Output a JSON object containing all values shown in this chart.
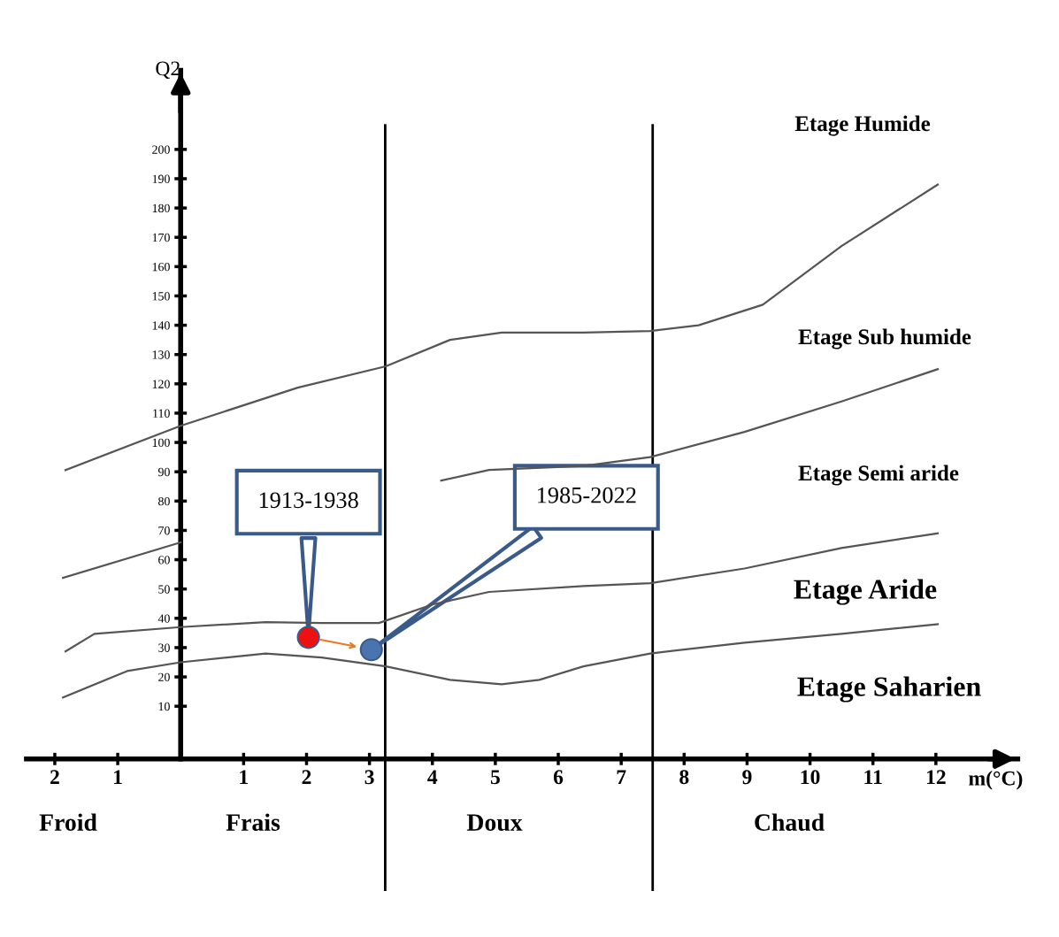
{
  "chart_data": {
    "type": "line",
    "xlabel": "m(°C)",
    "ylabel": "Q2",
    "xlim": [
      -2.45,
      13.3
    ],
    "ylim": [
      -8,
      227
    ],
    "xticks": [
      {
        "value": -2,
        "label": "2"
      },
      {
        "value": -1,
        "label": "1"
      },
      1,
      2,
      3,
      4,
      5,
      6,
      7,
      8,
      9,
      10,
      11,
      12
    ],
    "yticks": [
      10,
      20,
      30,
      40,
      50,
      60,
      70,
      80,
      90,
      100,
      110,
      120,
      130,
      140,
      150,
      160,
      170,
      180,
      190,
      200
    ],
    "grid": false,
    "legend": false,
    "line_style": "solid",
    "series": [
      {
        "color": "#555555",
        "x": [
          -1.83,
          0,
          1.86,
          3.26,
          4.28,
          5.1,
          6.4,
          7.46,
          8.23,
          9.25,
          10.5,
          12.03
        ],
        "values": [
          90.6,
          105.7,
          118.7,
          126,
          135,
          137.5,
          137.5,
          138,
          140,
          147,
          167,
          188
        ]
      },
      {
        "color": "#555555",
        "x": [
          -1.87,
          0,
          1.86,
          3.15,
          4.14,
          4.9,
          6.4,
          7.46,
          8.96,
          10.5,
          12.03
        ],
        "values": [
          53.8,
          65.9,
          null,
          null,
          87,
          90.6,
          92,
          95,
          103.6,
          114,
          125
        ]
      },
      {
        "color": "#555555",
        "x": [
          -1.83,
          -1.37,
          0,
          1.35,
          2.24,
          3.15,
          4,
          4.9,
          6.4,
          7.46,
          8.96,
          10.5,
          12.03
        ],
        "values": [
          28.7,
          34.7,
          37,
          38.7,
          38.4,
          38.4,
          44.7,
          49,
          51,
          52,
          57,
          64,
          69
        ]
      },
      {
        "color": "#555555",
        "x": [
          -1.87,
          -0.85,
          0,
          1.35,
          2.24,
          3.26,
          4.28,
          5.1,
          5.7,
          6.4,
          7.46,
          8.96,
          10.5,
          12.03
        ],
        "values": [
          13,
          22,
          25,
          28,
          26.6,
          23.6,
          19,
          17.5,
          19,
          23.6,
          28,
          31.7,
          34.7,
          38
        ]
      },
      {
        "type": "scatter",
        "name": "1913-1938",
        "color": "#ee1111",
        "x": [
          2.03
        ],
        "values": [
          33.5
        ]
      },
      {
        "type": "scatter",
        "name": "1985-2022",
        "color": "#4a74b0",
        "x": [
          3.03
        ],
        "values": [
          29.3
        ]
      }
    ],
    "ref_lines": [
      {
        "axis": "x",
        "value": 3.25,
        "color": "#000000"
      },
      {
        "axis": "x",
        "value": 7.5,
        "color": "#000000"
      }
    ],
    "annotations": [
      "Etage Humide",
      "Etage Sub humide",
      "Etage Semi aride",
      "Etage Aride",
      "Etage Saharien",
      "Froid",
      "Frais",
      "Doux",
      "Chaud"
    ]
  }
}
